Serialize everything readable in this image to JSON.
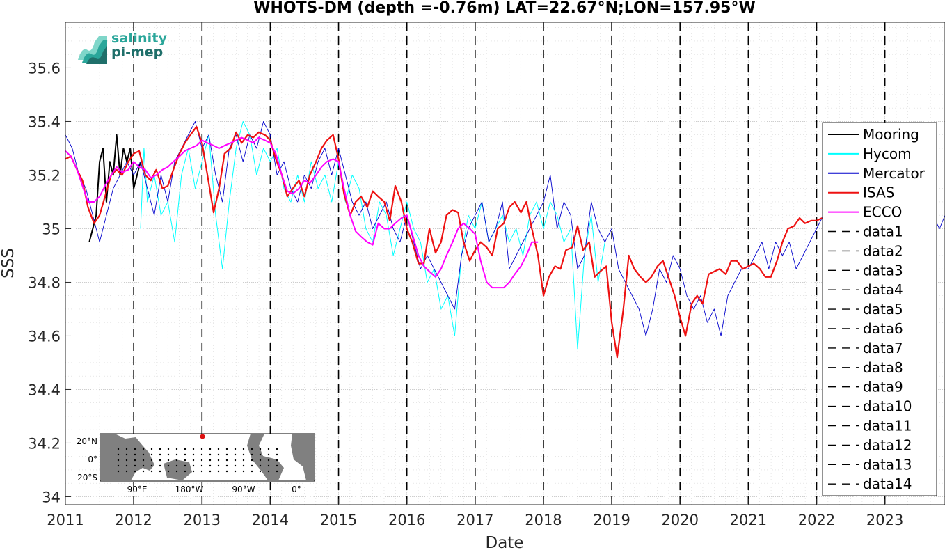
{
  "logo": {
    "line1": "salinity",
    "line2": "pi-mep"
  },
  "chart_data": {
    "type": "line",
    "title": "WHOTS-DM (depth =-0.76m) LAT=22.67°N;LON=157.95°W",
    "xlabel": "Date",
    "ylabel": "SSS",
    "xlim": [
      2011.0,
      2023.88
    ],
    "ylim": [
      33.97,
      35.77
    ],
    "xticks": [
      2011,
      2012,
      2013,
      2014,
      2015,
      2016,
      2017,
      2018,
      2019,
      2020,
      2021,
      2022,
      2023
    ],
    "yticks": [
      34,
      34.2,
      34.4,
      34.6,
      34.8,
      35,
      35.2,
      35.4,
      35.6
    ],
    "ytick_labels": [
      "34",
      "34.2",
      "34.4",
      "34.6",
      "34.8",
      "35",
      "35.2",
      "35.4",
      "35.6"
    ],
    "grid": "on",
    "legend_position": "right",
    "vlines_dashed": [
      2012,
      2013,
      2014,
      2015,
      2016,
      2017,
      2018,
      2019,
      2020,
      2021,
      2022,
      2023
    ],
    "series": [
      {
        "name": "Mooring",
        "color": "#000000",
        "x": [
          2011.35,
          2011.4,
          2011.45,
          2011.5,
          2011.55,
          2011.6,
          2011.65,
          2011.7,
          2011.75,
          2011.8,
          2011.85,
          2011.9,
          2011.95,
          2012.0,
          2012.05,
          2012.1
        ],
        "y": [
          34.95,
          35.0,
          35.05,
          35.25,
          35.3,
          35.1,
          35.25,
          35.2,
          35.35,
          35.2,
          35.3,
          35.25,
          35.3,
          35.15,
          35.2,
          35.25
        ]
      },
      {
        "name": "Hycom",
        "color": "#00ffff",
        "x": [
          2012.1,
          2012.15,
          2012.2,
          2012.3,
          2012.4,
          2012.5,
          2012.6,
          2012.7,
          2012.8,
          2012.9,
          2013.0,
          2013.1,
          2013.2,
          2013.3,
          2013.4,
          2013.5,
          2013.6,
          2013.7,
          2013.8,
          2013.9,
          2014.0,
          2014.1,
          2014.2,
          2014.3,
          2014.4,
          2014.5,
          2014.6,
          2014.7,
          2014.8,
          2014.9,
          2015.0,
          2015.1,
          2015.2,
          2015.3,
          2015.4,
          2015.5,
          2015.6,
          2015.7,
          2015.8,
          2015.9,
          2016.0,
          2016.1,
          2016.2,
          2016.3,
          2016.4,
          2016.5,
          2016.6,
          2016.7,
          2016.8,
          2016.9,
          2017.0,
          2017.1,
          2017.2,
          2017.3,
          2017.4,
          2017.5,
          2017.6,
          2017.7,
          2017.8,
          2017.9,
          2018.0,
          2018.1,
          2018.2,
          2018.3,
          2018.4,
          2018.5,
          2018.6,
          2018.7,
          2018.8,
          2018.9
        ],
        "y": [
          35.0,
          35.3,
          35.1,
          35.2,
          35.05,
          35.1,
          34.95,
          35.2,
          35.3,
          35.15,
          35.25,
          35.35,
          35.05,
          34.85,
          35.1,
          35.3,
          35.4,
          35.35,
          35.2,
          35.3,
          35.25,
          35.3,
          35.15,
          35.1,
          35.2,
          35.1,
          35.25,
          35.15,
          35.2,
          35.1,
          35.25,
          35.1,
          35.2,
          35.15,
          35.0,
          34.95,
          35.1,
          35.05,
          34.9,
          35.0,
          35.1,
          35.0,
          34.95,
          34.8,
          34.85,
          34.7,
          34.75,
          34.6,
          34.9,
          35.05,
          35.0,
          35.1,
          34.95,
          35.0,
          35.05,
          34.95,
          35.0,
          34.9,
          35.05,
          35.1,
          35.0,
          35.1,
          35.05,
          34.95,
          35.0,
          34.55,
          34.9,
          35.05,
          34.8,
          34.95
        ]
      },
      {
        "name": "Mercator",
        "color": "#0000cc",
        "x": [
          2011.0,
          2011.1,
          2011.2,
          2011.3,
          2011.4,
          2011.5,
          2011.6,
          2011.7,
          2011.8,
          2011.9,
          2012.0,
          2012.1,
          2012.2,
          2012.3,
          2012.4,
          2012.5,
          2012.6,
          2012.7,
          2012.8,
          2012.9,
          2013.0,
          2013.1,
          2013.2,
          2013.3,
          2013.4,
          2013.5,
          2013.6,
          2013.7,
          2013.8,
          2013.9,
          2014.0,
          2014.1,
          2014.2,
          2014.3,
          2014.4,
          2014.5,
          2014.6,
          2014.7,
          2014.8,
          2014.9,
          2015.0,
          2015.1,
          2015.2,
          2015.3,
          2015.4,
          2015.5,
          2015.6,
          2015.7,
          2015.8,
          2015.9,
          2016.0,
          2016.1,
          2016.2,
          2016.3,
          2016.4,
          2016.5,
          2016.6,
          2016.7,
          2016.8,
          2016.9,
          2017.0,
          2017.1,
          2017.2,
          2017.3,
          2017.4,
          2017.5,
          2017.6,
          2017.7,
          2017.8,
          2017.9,
          2018.0,
          2018.1,
          2018.2,
          2018.3,
          2018.4,
          2018.5,
          2018.6,
          2018.7,
          2018.8,
          2018.9,
          2019.0,
          2019.1,
          2019.2,
          2019.3,
          2019.4,
          2019.5,
          2019.6,
          2019.7,
          2019.8,
          2019.9,
          2020.0,
          2020.1,
          2020.2,
          2020.3,
          2020.4,
          2020.5,
          2020.6,
          2020.7,
          2020.8,
          2020.9,
          2021.0,
          2021.1,
          2021.2,
          2021.3,
          2021.4,
          2021.5,
          2021.6,
          2021.7,
          2021.8,
          2021.9,
          2022.0,
          2022.1,
          2022.2,
          2022.3,
          2022.4,
          2022.5,
          2022.6,
          2022.7,
          2022.8,
          2022.9,
          2023.0,
          2023.1,
          2023.2,
          2023.3,
          2023.4,
          2023.5,
          2023.6,
          2023.7,
          2023.8,
          2023.88
        ],
        "y": [
          35.35,
          35.3,
          35.2,
          35.15,
          35.05,
          34.95,
          35.05,
          35.15,
          35.2,
          35.25,
          35.2,
          35.25,
          35.15,
          35.05,
          35.2,
          35.1,
          35.25,
          35.3,
          35.35,
          35.4,
          35.3,
          35.35,
          35.2,
          35.1,
          35.3,
          35.35,
          35.25,
          35.35,
          35.3,
          35.4,
          35.35,
          35.2,
          35.25,
          35.15,
          35.1,
          35.2,
          35.15,
          35.25,
          35.3,
          35.2,
          35.3,
          35.2,
          35.1,
          35.05,
          35.1,
          35.0,
          35.05,
          35.1,
          35.0,
          34.95,
          35.05,
          34.95,
          34.85,
          34.9,
          34.85,
          34.8,
          34.75,
          34.7,
          34.9,
          35.0,
          35.05,
          35.1,
          34.95,
          35.0,
          35.1,
          34.85,
          34.9,
          34.95,
          35.0,
          35.05,
          35.1,
          35.2,
          35.0,
          35.1,
          35.05,
          34.85,
          34.9,
          35.1,
          35.0,
          34.95,
          35.0,
          34.85,
          34.8,
          34.75,
          34.7,
          34.6,
          34.7,
          34.85,
          34.8,
          34.9,
          34.85,
          34.75,
          34.7,
          34.75,
          34.65,
          34.7,
          34.6,
          34.75,
          34.8,
          34.85,
          34.85,
          34.9,
          34.95,
          34.85,
          34.95,
          34.9,
          34.95,
          34.85,
          34.9,
          34.95,
          35.0,
          35.05,
          35.0,
          35.05,
          35.1,
          35.05,
          35.1,
          35.05,
          35.1,
          35.15,
          35.3,
          35.25,
          35.15,
          35.2,
          35.1,
          35.15,
          35.1,
          35.05,
          35.0,
          35.05
        ]
      },
      {
        "name": "ISAS",
        "color": "#ee1111",
        "x": [
          2011.0,
          2011.08,
          2011.17,
          2011.25,
          2011.33,
          2011.42,
          2011.5,
          2011.58,
          2011.67,
          2011.75,
          2011.83,
          2011.92,
          2012.0,
          2012.08,
          2012.17,
          2012.25,
          2012.33,
          2012.42,
          2012.5,
          2012.58,
          2012.67,
          2012.75,
          2012.83,
          2012.92,
          2013.0,
          2013.08,
          2013.17,
          2013.25,
          2013.33,
          2013.42,
          2013.5,
          2013.58,
          2013.67,
          2013.75,
          2013.83,
          2013.92,
          2014.0,
          2014.08,
          2014.17,
          2014.25,
          2014.33,
          2014.42,
          2014.5,
          2014.58,
          2014.67,
          2014.75,
          2014.83,
          2014.92,
          2015.0,
          2015.08,
          2015.17,
          2015.25,
          2015.33,
          2015.42,
          2015.5,
          2015.58,
          2015.67,
          2015.75,
          2015.83,
          2015.92,
          2016.0,
          2016.08,
          2016.17,
          2016.25,
          2016.33,
          2016.42,
          2016.5,
          2016.58,
          2016.67,
          2016.75,
          2016.83,
          2016.92,
          2017.0,
          2017.08,
          2017.17,
          2017.25,
          2017.33,
          2017.42,
          2017.5,
          2017.58,
          2017.67,
          2017.75,
          2017.83,
          2017.92,
          2018.0,
          2018.08,
          2018.17,
          2018.25,
          2018.33,
          2018.42,
          2018.5,
          2018.58,
          2018.67,
          2018.75,
          2018.83,
          2018.92,
          2019.0,
          2019.08,
          2019.17,
          2019.25,
          2019.33,
          2019.42,
          2019.5,
          2019.58,
          2019.67,
          2019.75,
          2019.83,
          2019.92,
          2020.0,
          2020.08,
          2020.17,
          2020.25,
          2020.33,
          2020.42,
          2020.5,
          2020.58,
          2020.67,
          2020.75,
          2020.83,
          2020.92,
          2021.0,
          2021.08,
          2021.17,
          2021.25,
          2021.33,
          2021.42,
          2021.5,
          2021.58,
          2021.67,
          2021.75,
          2021.83,
          2021.92,
          2022.0,
          2022.08
        ],
        "y": [
          35.26,
          35.27,
          35.22,
          35.18,
          35.08,
          35.02,
          35.05,
          35.12,
          35.2,
          35.22,
          35.2,
          35.25,
          35.28,
          35.29,
          35.2,
          35.18,
          35.22,
          35.15,
          35.16,
          35.22,
          35.28,
          35.32,
          35.35,
          35.38,
          35.32,
          35.2,
          35.06,
          35.15,
          35.28,
          35.3,
          35.36,
          35.32,
          35.35,
          35.34,
          35.36,
          35.35,
          35.33,
          35.26,
          35.2,
          35.12,
          35.15,
          35.18,
          35.12,
          35.2,
          35.25,
          35.3,
          35.33,
          35.35,
          35.26,
          35.13,
          35.05,
          35.1,
          35.12,
          35.08,
          35.14,
          35.12,
          35.1,
          35.03,
          35.16,
          35.1,
          35.0,
          34.95,
          34.87,
          34.87,
          35.0,
          34.91,
          34.95,
          35.05,
          35.07,
          35.06,
          34.95,
          34.88,
          34.92,
          34.95,
          34.93,
          34.9,
          35.0,
          35.02,
          35.08,
          35.1,
          35.06,
          35.1,
          35.0,
          34.9,
          34.75,
          34.82,
          34.86,
          34.85,
          34.92,
          34.93,
          35.01,
          34.92,
          34.95,
          34.82,
          34.84,
          34.86,
          34.65,
          34.52,
          34.7,
          34.9,
          34.85,
          34.82,
          34.8,
          34.82,
          34.86,
          34.88,
          34.82,
          34.75,
          34.67,
          34.6,
          34.72,
          34.75,
          34.72,
          34.83,
          34.84,
          34.85,
          34.83,
          34.88,
          34.88,
          34.85,
          34.86,
          34.87,
          34.85,
          34.82,
          34.82,
          34.88,
          34.95,
          35.0,
          35.01,
          35.04,
          35.02,
          35.03,
          35.03,
          35.04
        ]
      },
      {
        "name": "ECCO",
        "color": "#ff00ff",
        "x": [
          2011.0,
          2011.08,
          2011.17,
          2011.25,
          2011.33,
          2011.42,
          2011.5,
          2011.58,
          2011.67,
          2011.75,
          2011.83,
          2011.92,
          2012.0,
          2012.08,
          2012.17,
          2012.25,
          2012.33,
          2012.42,
          2012.5,
          2012.58,
          2012.67,
          2012.75,
          2012.83,
          2012.92,
          2013.0,
          2013.08,
          2013.17,
          2013.25,
          2013.33,
          2013.42,
          2013.5,
          2013.58,
          2013.67,
          2013.75,
          2013.83,
          2013.92,
          2014.0,
          2014.08,
          2014.17,
          2014.25,
          2014.33,
          2014.42,
          2014.5,
          2014.58,
          2014.67,
          2014.75,
          2014.83,
          2014.92,
          2015.0,
          2015.08,
          2015.17,
          2015.25,
          2015.33,
          2015.42,
          2015.5,
          2015.58,
          2015.67,
          2015.75,
          2015.83,
          2015.92,
          2016.0,
          2016.08,
          2016.17,
          2016.25,
          2016.33,
          2016.42,
          2016.5,
          2016.58,
          2016.67,
          2016.75,
          2016.83,
          2016.92,
          2017.0,
          2017.08,
          2017.17,
          2017.25,
          2017.33,
          2017.42,
          2017.5,
          2017.58,
          2017.67,
          2017.75,
          2017.83,
          2017.92
        ],
        "y": [
          35.29,
          35.27,
          35.22,
          35.16,
          35.1,
          35.1,
          35.12,
          35.16,
          35.2,
          35.23,
          35.21,
          35.22,
          35.25,
          35.23,
          35.22,
          35.19,
          35.2,
          35.22,
          35.23,
          35.25,
          35.27,
          35.29,
          35.3,
          35.31,
          35.33,
          35.32,
          35.31,
          35.3,
          35.31,
          35.32,
          35.33,
          35.34,
          35.33,
          35.32,
          35.34,
          35.33,
          35.32,
          35.28,
          35.2,
          35.14,
          35.13,
          35.15,
          35.18,
          35.17,
          35.2,
          35.23,
          35.25,
          35.26,
          35.25,
          35.15,
          35.05,
          34.99,
          34.97,
          34.95,
          34.94,
          35.02,
          35.0,
          35.0,
          35.02,
          35.04,
          35.05,
          34.98,
          34.9,
          34.86,
          34.84,
          34.82,
          34.85,
          34.9,
          34.95,
          35.0,
          35.02,
          35.0,
          34.98,
          34.88,
          34.8,
          34.78,
          34.78,
          34.78,
          34.8,
          34.83,
          34.86,
          34.9,
          34.95,
          34.95
        ]
      }
    ],
    "legend_dashed_labels": [
      "data1",
      "data2",
      "data3",
      "data4",
      "data5",
      "data6",
      "data7",
      "data8",
      "data9",
      "data10",
      "data11",
      "data12",
      "data13",
      "data14"
    ],
    "inset_map": {
      "ylabels": [
        "20°N",
        "0°",
        "20°S"
      ],
      "xlabels": [
        "90°E",
        "180°W",
        "90°W",
        "0°"
      ],
      "marker_color": "#dd1111"
    }
  }
}
